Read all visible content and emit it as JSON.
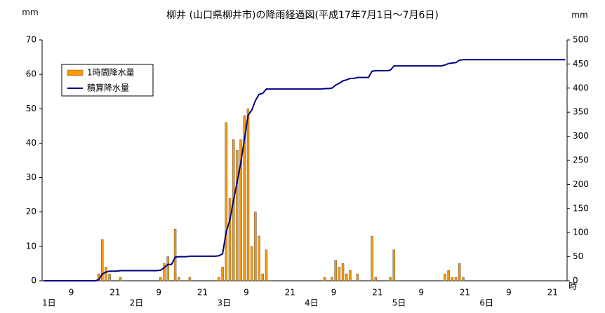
{
  "chart_data": {
    "type": "bar-line",
    "title": "柳井 (山口県柳井市)の降雨経過図(平成17年7月1日～7月6日)",
    "y_label": "mm",
    "y2_label": "mm",
    "x_unit": "時",
    "categories": [
      null,
      null,
      null,
      null,
      null,
      null,
      null,
      null,
      "9",
      null,
      null,
      null,
      null,
      null,
      null,
      null,
      null,
      null,
      null,
      null,
      "21",
      null,
      null,
      null,
      null,
      null,
      null,
      null,
      null,
      null,
      null,
      null,
      "9",
      null,
      null,
      null,
      null,
      null,
      null,
      null,
      null,
      null,
      null,
      null,
      "21",
      null,
      null,
      null,
      null,
      null,
      null,
      null,
      null,
      null,
      null,
      null,
      "9",
      null,
      null,
      null,
      null,
      null,
      null,
      null,
      null,
      null,
      null,
      null,
      "21",
      null,
      null,
      null,
      null,
      null,
      null,
      null,
      null,
      null,
      null,
      null,
      "9",
      null,
      null,
      null,
      null,
      null,
      null,
      null,
      null,
      null,
      null,
      null,
      "21",
      null,
      null,
      null,
      null,
      null,
      null,
      null,
      null,
      null,
      null,
      null,
      "9",
      null,
      null,
      null,
      null,
      null,
      null,
      null,
      null,
      null,
      null,
      null,
      "21",
      null,
      null,
      null,
      null,
      null,
      null,
      null,
      null,
      null,
      null,
      null,
      "9",
      null,
      null,
      null,
      null,
      null,
      null,
      null,
      null,
      null,
      null,
      null,
      "21",
      null,
      null,
      null
    ],
    "x_groups": [
      "1日",
      "2日",
      "3日",
      "4日",
      "5日",
      "6日"
    ],
    "series": [
      {
        "name": "1時間降水量",
        "type": "bar",
        "color": "#ff9900",
        "values": [
          0,
          0,
          0,
          0,
          0,
          0,
          0,
          0,
          0,
          0,
          0,
          0,
          0,
          0,
          0,
          2,
          12,
          4,
          2,
          0,
          0,
          1,
          0,
          0,
          0,
          0,
          0,
          0,
          0,
          0,
          0,
          0,
          1,
          5,
          7,
          0,
          15,
          1,
          0,
          0,
          1,
          0,
          0,
          0,
          0,
          0,
          0,
          0,
          1,
          4,
          46,
          24,
          41,
          38,
          41,
          48,
          50,
          10,
          20,
          13,
          2,
          9,
          0,
          0,
          0,
          0,
          0,
          0,
          0,
          0,
          0,
          0,
          0,
          0,
          0,
          0,
          0,
          1,
          0,
          1,
          6,
          4,
          5,
          2,
          3,
          0,
          2,
          0,
          0,
          0,
          13,
          1,
          0,
          0,
          0,
          1,
          9,
          0,
          0,
          0,
          0,
          0,
          0,
          0,
          0,
          0,
          0,
          0,
          0,
          0,
          2,
          3,
          1,
          1,
          5,
          1,
          0,
          0,
          0,
          0,
          0,
          0,
          0,
          0,
          0,
          0,
          0,
          0,
          0,
          0,
          0,
          0,
          0,
          0,
          0,
          0,
          0,
          0,
          0,
          0,
          0,
          0,
          0,
          0
        ]
      },
      {
        "name": "積算降水量",
        "type": "line",
        "axis": "y2",
        "color": "#000080",
        "values": [
          0,
          0,
          0,
          0,
          0,
          0,
          0,
          0,
          0,
          0,
          0,
          0,
          0,
          0,
          0,
          2,
          14,
          18,
          20,
          20,
          20,
          21,
          21,
          21,
          21,
          21,
          21,
          21,
          21,
          21,
          21,
          21,
          22,
          27,
          34,
          34,
          49,
          50,
          50,
          50,
          51,
          51,
          51,
          51,
          51,
          51,
          51,
          51,
          52,
          56,
          102,
          126,
          167,
          205,
          246,
          294,
          344,
          354,
          374,
          387,
          389,
          398,
          398,
          398,
          398,
          398,
          398,
          398,
          398,
          398,
          398,
          398,
          398,
          398,
          398,
          398,
          398,
          399,
          399,
          400,
          406,
          410,
          415,
          417,
          420,
          420,
          422,
          422,
          422,
          422,
          435,
          436,
          436,
          436,
          436,
          437,
          446,
          446,
          446,
          446,
          446,
          446,
          446,
          446,
          446,
          446,
          446,
          446,
          446,
          446,
          448,
          451,
          452,
          453,
          458,
          459,
          459,
          459,
          459,
          459,
          459,
          459,
          459,
          459,
          459,
          459,
          459,
          459,
          459,
          459,
          459,
          459,
          459,
          459,
          459,
          459,
          459,
          459,
          459,
          459,
          459,
          459,
          459,
          459
        ]
      }
    ],
    "ylim": [
      0,
      70
    ],
    "yticks": [
      0,
      10,
      20,
      30,
      40,
      50,
      60,
      70
    ],
    "y2lim": [
      0,
      500
    ],
    "y2ticks": [
      0,
      50,
      100,
      150,
      200,
      250,
      300,
      350,
      400,
      450,
      500
    ],
    "legend": "upper-left"
  }
}
